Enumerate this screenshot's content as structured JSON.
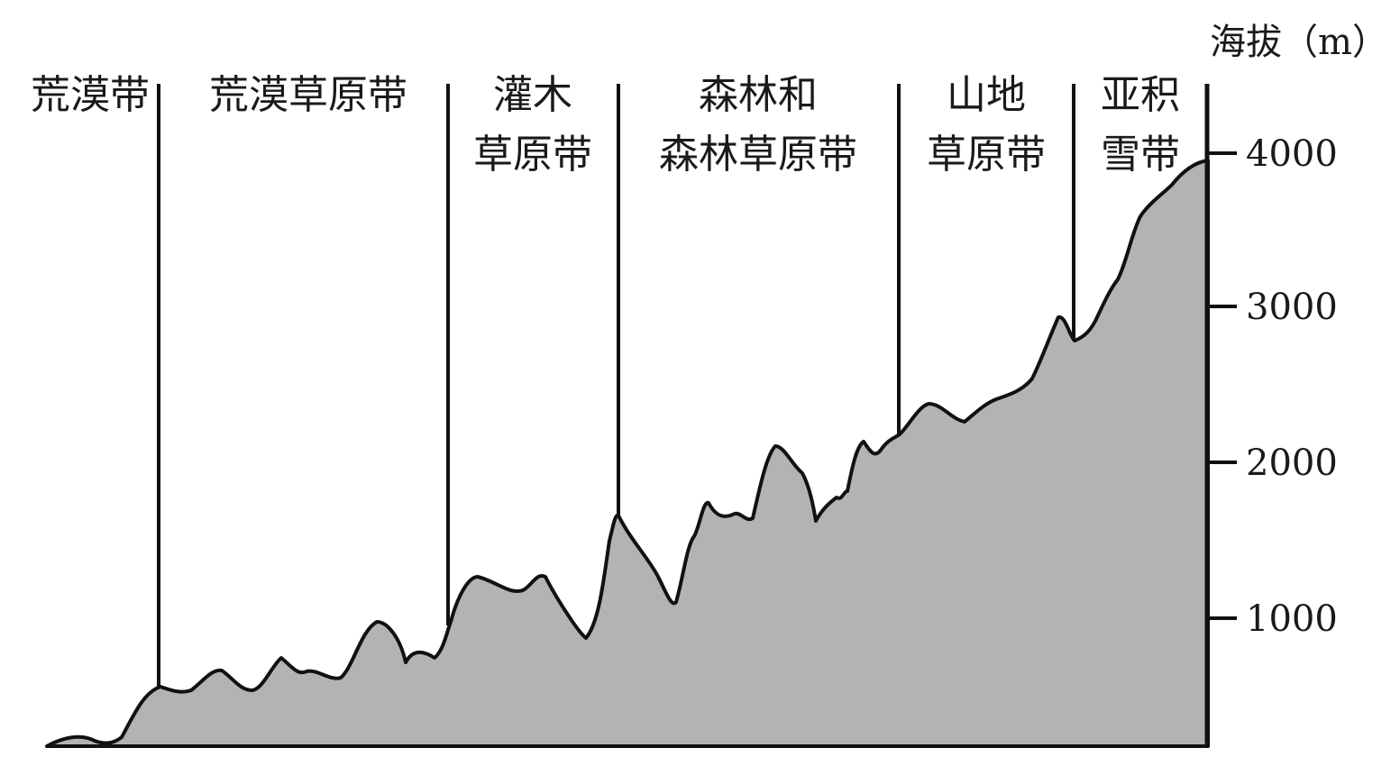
{
  "axis": {
    "title": "海拔（m）",
    "ticks": [
      {
        "value": 1000,
        "label": "1000"
      },
      {
        "value": 2000,
        "label": "2000"
      },
      {
        "value": 3000,
        "label": "3000"
      },
      {
        "value": 4000,
        "label": "4000"
      }
    ]
  },
  "zones": [
    {
      "id": "desert",
      "lines": [
        "荒漠带"
      ]
    },
    {
      "id": "desert-steppe",
      "lines": [
        "荒漠草原带"
      ]
    },
    {
      "id": "shrub-steppe",
      "lines": [
        "灌木",
        "草原带"
      ]
    },
    {
      "id": "forest-steppe",
      "lines": [
        "森林和",
        "森林草原带"
      ]
    },
    {
      "id": "mountain-meadow",
      "lines": [
        "山地",
        "草原带"
      ]
    },
    {
      "id": "subnival",
      "lines": [
        "亚积",
        "雪带"
      ]
    }
  ],
  "colors": {
    "terrain_fill": "#b3b3b3",
    "outline": "#111111",
    "background": "#ffffff"
  }
}
